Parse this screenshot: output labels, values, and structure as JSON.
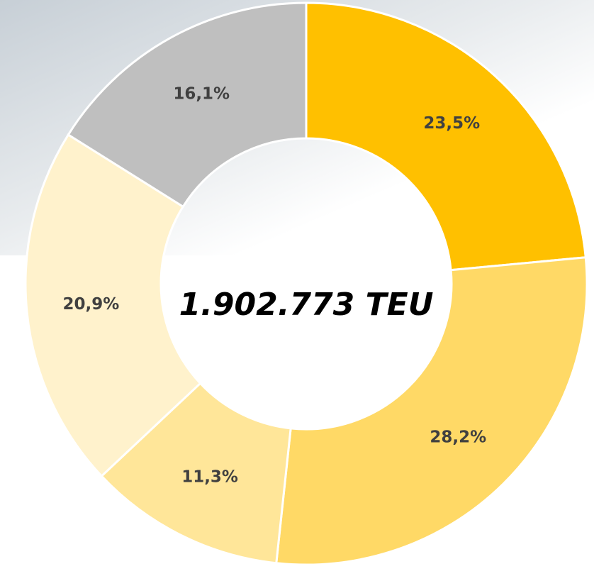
{
  "chart_data": {
    "type": "donut",
    "values": [
      23.5,
      28.2,
      11.3,
      20.9,
      16.1
    ],
    "value_labels": [
      "23,5%",
      "28,2%",
      "11,3%",
      "20,9%",
      "16,1%"
    ],
    "colors": [
      "#FFC000",
      "#FFD966",
      "#FFE699",
      "#FFF2CC",
      "#BFBFBF"
    ],
    "center_label": "1.902.773 TEU"
  }
}
